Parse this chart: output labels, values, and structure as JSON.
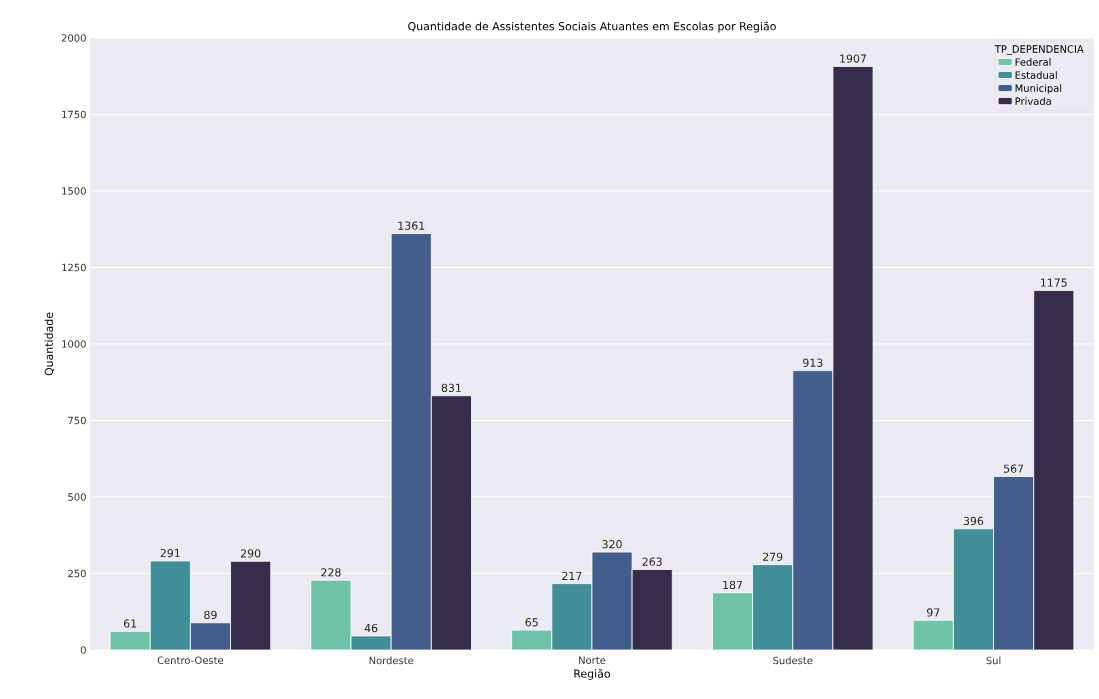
{
  "chart_data": {
    "type": "bar",
    "title": "Quantidade de Assistentes Sociais Atuantes em Escolas por Região",
    "xlabel": "Região",
    "ylabel": "Quantidade",
    "legend_title": "TP_DEPENDENCIA",
    "categories": [
      "Centro-Oeste",
      "Nordeste",
      "Norte",
      "Sudeste",
      "Sul"
    ],
    "series": [
      {
        "name": "Federal",
        "color": "#6cc3a6",
        "values": [
          61,
          228,
          65,
          187,
          97
        ]
      },
      {
        "name": "Estadual",
        "color": "#408e98",
        "values": [
          291,
          46,
          217,
          279,
          396
        ]
      },
      {
        "name": "Municipal",
        "color": "#435e8d",
        "values": [
          89,
          1361,
          320,
          913,
          567
        ]
      },
      {
        "name": "Privada",
        "color": "#372c4b",
        "values": [
          290,
          831,
          263,
          1907,
          1175
        ]
      }
    ],
    "ylim": [
      0,
      2000
    ],
    "yticks": [
      0,
      250,
      500,
      750,
      1000,
      1250,
      1500,
      1750,
      2000
    ],
    "grid": "y",
    "legend": "top right",
    "data_labels": true
  }
}
